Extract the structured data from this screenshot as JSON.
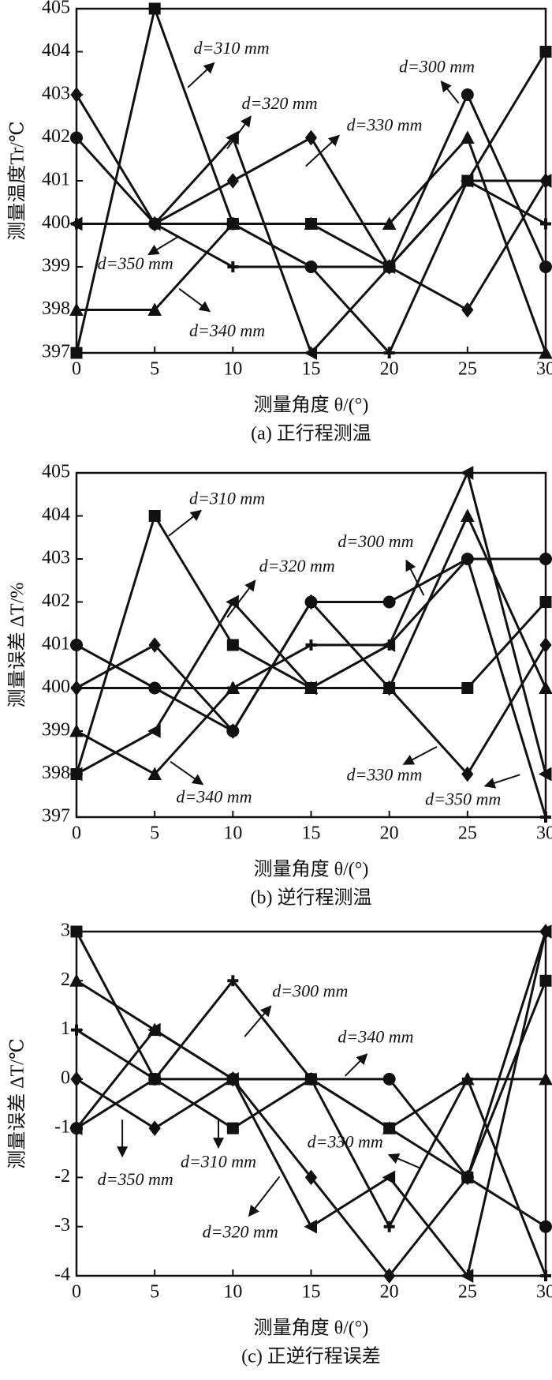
{
  "chart_data": [
    {
      "type": "line",
      "title": "(a) 正行程测温",
      "x_label": "测量角度 θ/(°)",
      "y_label": "测量温度Tr/℃",
      "x": [
        0,
        5,
        10,
        15,
        20,
        25,
        30
      ],
      "xlim": [
        0,
        30
      ],
      "xticks": [
        0,
        5,
        10,
        15,
        20,
        25,
        30
      ],
      "ylim": [
        397,
        405
      ],
      "yticks": [
        397,
        398,
        399,
        400,
        401,
        402,
        403,
        404,
        405
      ],
      "series": [
        {
          "name": "d=310 mm",
          "color": "#111111",
          "marker": "square",
          "values": [
            397,
            405,
            400,
            400,
            399,
            401,
            404
          ]
        },
        {
          "name": "d=300 mm",
          "color": "#111111",
          "marker": "circle",
          "values": [
            402,
            400,
            400,
            399,
            399,
            403,
            399
          ]
        },
        {
          "name": "d=330 mm",
          "color": "#111111",
          "marker": "diamond",
          "values": [
            403,
            400,
            401,
            402,
            399,
            398,
            401
          ]
        },
        {
          "name": "d=340 mm",
          "color": "#111111",
          "marker": "triangle",
          "values": [
            398,
            398,
            400,
            400,
            400,
            402,
            397
          ]
        },
        {
          "name": "d=320 mm",
          "color": "#111111",
          "marker": "triangle-left",
          "values": [
            400,
            400,
            402,
            397,
            399,
            401,
            401
          ]
        },
        {
          "name": "d=350 mm",
          "color": "#111111",
          "marker": "plus",
          "values": [
            400,
            400,
            399,
            399,
            397,
            401,
            400
          ]
        }
      ]
    },
    {
      "type": "line",
      "title": "(b) 逆行程测温",
      "x_label": "测量角度 θ/(°)",
      "y_label": "测量误差 ΔT/%",
      "x": [
        0,
        5,
        10,
        15,
        20,
        25,
        30
      ],
      "xlim": [
        0,
        30
      ],
      "xticks": [
        0,
        5,
        10,
        15,
        20,
        25,
        30
      ],
      "ylim": [
        397,
        405
      ],
      "yticks": [
        397,
        398,
        399,
        400,
        401,
        402,
        403,
        404,
        405
      ],
      "series": [
        {
          "name": "d=310 mm",
          "color": "#111111",
          "marker": "square",
          "values": [
            398,
            404,
            401,
            400,
            400,
            400,
            402
          ]
        },
        {
          "name": "d=300 mm",
          "color": "#111111",
          "marker": "circle",
          "values": [
            401,
            400,
            399,
            402,
            402,
            403,
            403
          ]
        },
        {
          "name": "d=330 mm",
          "color": "#111111",
          "marker": "diamond",
          "values": [
            400,
            401,
            399,
            402,
            400,
            398,
            401
          ]
        },
        {
          "name": "d=340 mm",
          "color": "#111111",
          "marker": "triangle",
          "values": [
            399,
            398,
            400,
            400,
            400,
            404,
            400
          ]
        },
        {
          "name": "d=320 mm",
          "color": "#111111",
          "marker": "triangle-left",
          "values": [
            398,
            399,
            402,
            400,
            401,
            405,
            398
          ]
        },
        {
          "name": "d=350 mm",
          "color": "#111111",
          "marker": "plus",
          "values": [
            400,
            400,
            400,
            401,
            401,
            403,
            397
          ]
        }
      ]
    },
    {
      "type": "line",
      "title": "(c) 正逆行程误差",
      "x_label": "测量角度 θ/(°)",
      "y_label": "测量误差 ΔT/℃",
      "x": [
        0,
        5,
        10,
        15,
        20,
        25,
        30
      ],
      "xlim": [
        0,
        30
      ],
      "xticks": [
        0,
        5,
        10,
        15,
        20,
        25,
        30
      ],
      "ylim": [
        -4,
        3
      ],
      "yticks": [
        -4,
        -3,
        -2,
        -1,
        0,
        1,
        2,
        3
      ],
      "series": [
        {
          "name": "d=300 mm",
          "color": "#111111",
          "marker": "circle",
          "values": [
            -1,
            0,
            0,
            0,
            0,
            -2,
            -3
          ]
        },
        {
          "name": "d=340 mm",
          "color": "#111111",
          "marker": "triangle",
          "values": [
            2,
            1,
            0,
            0,
            -1,
            0,
            0
          ]
        },
        {
          "name": "d=330 mm",
          "color": "#111111",
          "marker": "diamond",
          "values": [
            0,
            -1,
            0,
            -2,
            -4,
            -2,
            3
          ]
        },
        {
          "name": "d=310 mm",
          "color": "#111111",
          "marker": "square",
          "values": [
            3,
            0,
            -1,
            0,
            -1,
            -2,
            2
          ]
        },
        {
          "name": "d=350 mm",
          "color": "#111111",
          "marker": "plus",
          "values": [
            1,
            0,
            2,
            0,
            -3,
            0,
            -4
          ]
        },
        {
          "name": "d=320 mm",
          "color": "#111111",
          "marker": "triangle-left",
          "values": [
            -1,
            1,
            0,
            -3,
            -2,
            -4,
            3
          ]
        }
      ]
    }
  ]
}
